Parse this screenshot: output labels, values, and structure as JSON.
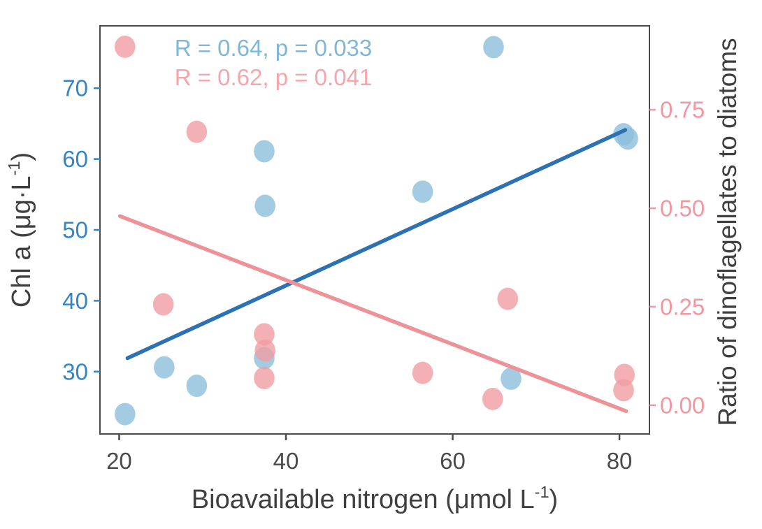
{
  "chart_data": {
    "type": "scatter",
    "title": "",
    "grid": false,
    "legend": "none",
    "background": "#FFFFFF",
    "border_color": "#4A4A4A",
    "xlabel_parts": [
      {
        "t": "Bioavailable nitrogen (μmol L"
      },
      {
        "t": "-1",
        "sup": true
      },
      {
        "t": ")"
      }
    ],
    "ylabel_left_parts": [
      {
        "t": "Chl a (μg·L"
      },
      {
        "t": "-1",
        "sup": true
      },
      {
        "t": ")"
      }
    ],
    "ylabel_right": "Ratio of dinoflagellates to diatoms",
    "axes": {
      "x": {
        "lim": [
          17.7,
          83.6
        ],
        "ticks": [
          20,
          40,
          60,
          80
        ],
        "tick_labels": [
          "20",
          "40",
          "60",
          "80"
        ],
        "color": "#4A4A4A"
      },
      "y_left": {
        "lim": [
          21.2,
          78.8
        ],
        "ticks": [
          30,
          40,
          50,
          60,
          70
        ],
        "tick_labels": [
          "30",
          "40",
          "50",
          "60",
          "70"
        ],
        "color": "#3585C2"
      },
      "y_right": {
        "lim": [
          -0.073,
          0.963
        ],
        "ticks": [
          0,
          0.25,
          0.5,
          0.75
        ],
        "tick_labels": [
          "0.00",
          "0.25",
          "0.50",
          "0.75"
        ],
        "color": "#F2979F"
      }
    },
    "series": [
      {
        "name": "Chl a",
        "axis": "left",
        "point_color": "#8CBEDB",
        "point_opacity": 0.8,
        "points": [
          [
            20.7,
            24.0
          ],
          [
            25.4,
            30.6
          ],
          [
            29.3,
            28.0
          ],
          [
            37.4,
            61.1
          ],
          [
            37.5,
            53.4
          ],
          [
            37.4,
            31.9
          ],
          [
            56.4,
            55.4
          ],
          [
            64.9,
            75.8
          ],
          [
            67.0,
            29.0
          ],
          [
            80.5,
            63.5
          ],
          [
            81.0,
            62.9
          ]
        ]
      },
      {
        "name": "Ratio of dinoflagellates to diatoms",
        "axis": "right",
        "point_color": "#F09DA4",
        "point_opacity": 0.8,
        "points": [
          [
            20.7,
            0.91
          ],
          [
            25.3,
            0.256
          ],
          [
            29.3,
            0.694
          ],
          [
            37.4,
            0.18
          ],
          [
            37.5,
            0.139
          ],
          [
            37.4,
            0.069
          ],
          [
            56.4,
            0.082
          ],
          [
            64.8,
            0.016
          ],
          [
            66.6,
            0.27
          ],
          [
            80.6,
            0.077
          ],
          [
            80.5,
            0.038
          ]
        ]
      }
    ],
    "regression_lines": [
      {
        "name": "chl-a-regression",
        "axis": "left",
        "color": "#2C71B2",
        "x1": 21.0,
        "y1": 31.9,
        "x2": 80.7,
        "y2": 64.1
      },
      {
        "name": "ratio-regression",
        "axis": "right",
        "color": "#EE929A",
        "x1": 20.1,
        "y1": 0.48,
        "x2": 80.8,
        "y2": -0.015
      }
    ],
    "annotations": [
      {
        "text": "R = 0.64, p = 0.033",
        "color": "#7FB7D7"
      },
      {
        "text": "R = 0.62, p = 0.041",
        "color": "#F5A6AC"
      }
    ]
  }
}
